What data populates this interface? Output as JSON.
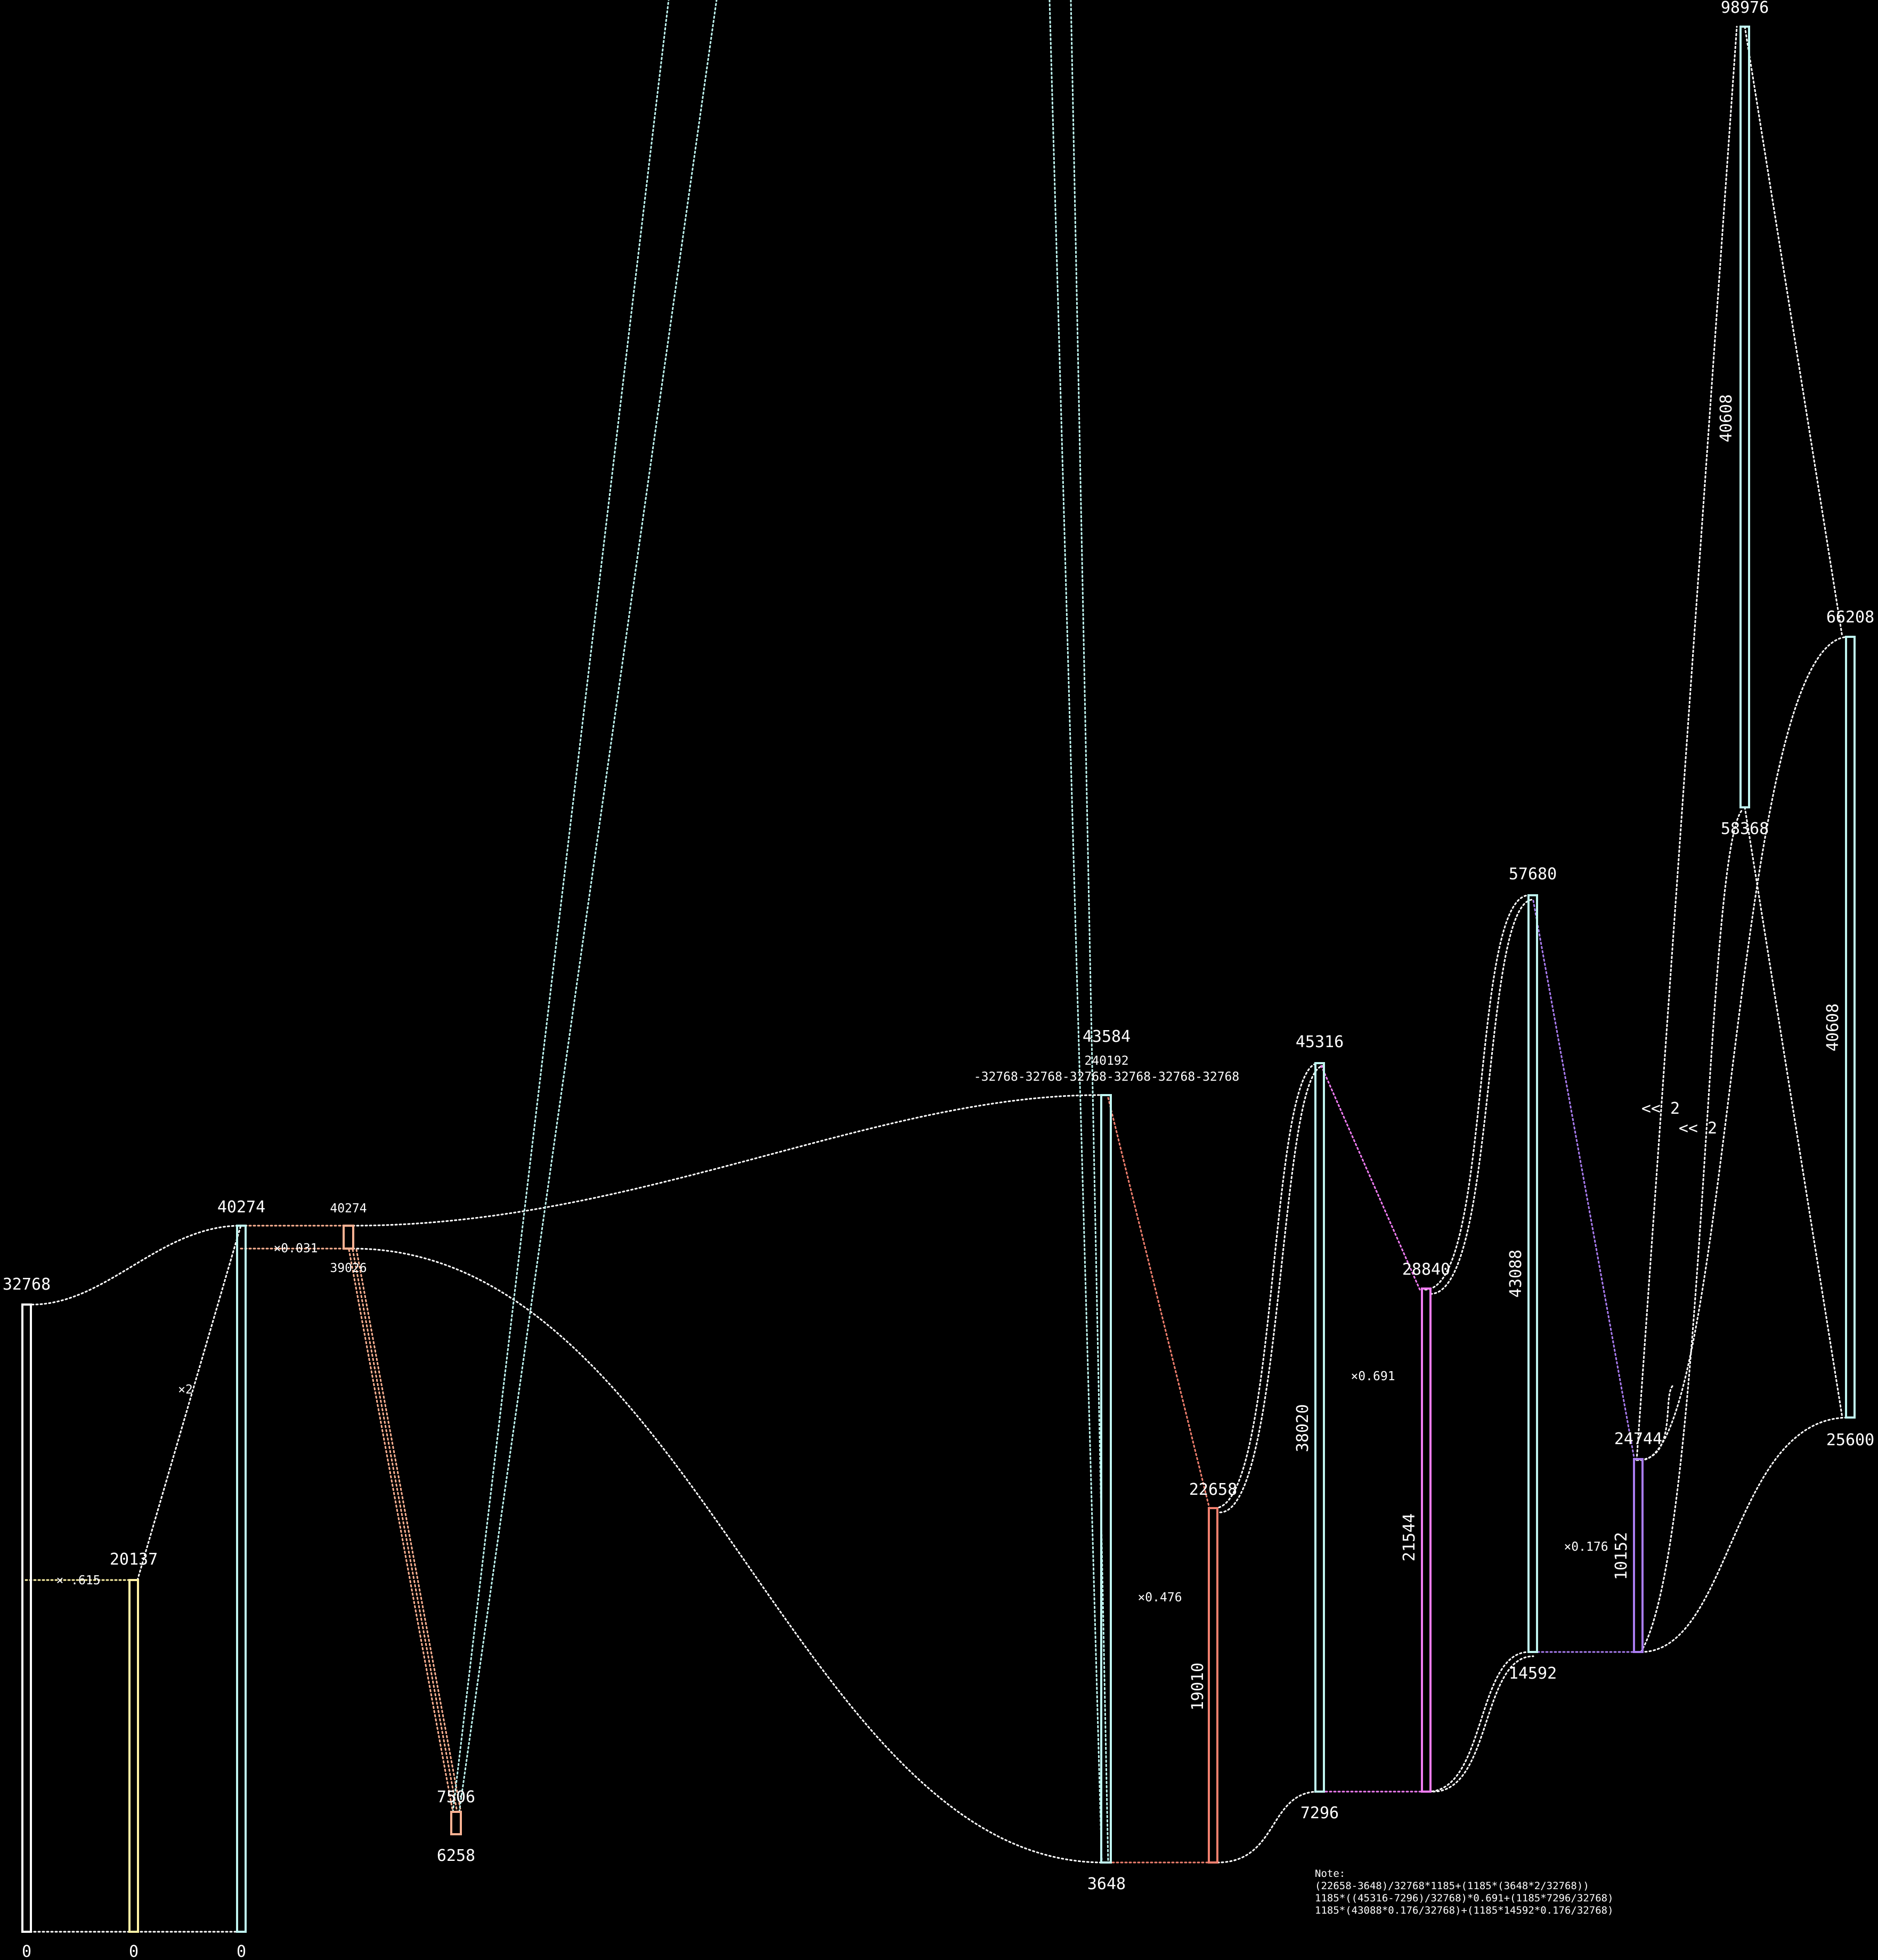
{
  "colors": {
    "background": "#000000",
    "text": "#ffffff",
    "white": "#ffffff",
    "cyan": "#bff5f0",
    "yellow": "#fff3a6",
    "salmon": "#ffb293",
    "red": "#f07f6e",
    "magenta": "#f07cf3",
    "violet": "#a97cf0"
  },
  "values": {
    "v0a": "0",
    "v0b": "0",
    "v0c": "0",
    "v32768": "32768",
    "v20137": "20137",
    "v40274": "40274",
    "v40274_small": "40274",
    "v39026": "39026",
    "v7506": "7506",
    "v6258": "6258",
    "v43584": "43584",
    "v240192": "240192",
    "expr_sub": "-32768-32768-32768-32768-32768-32768",
    "v3648": "3648",
    "v22658": "22658",
    "v19010": "19010",
    "v45316": "45316",
    "v38020": "38020",
    "v7296": "7296",
    "v28840": "28840",
    "v21544": "21544",
    "v57680": "57680",
    "v43088": "43088",
    "v14592": "14592",
    "v24744": "24744",
    "v10152": "10152",
    "v98976": "98976",
    "v40608_a": "40608",
    "v58368": "58368",
    "v66208": "66208",
    "v40608_b": "40608",
    "v25600": "25600"
  },
  "ops": {
    "mul_0615": "× .615",
    "mul_2": "×2",
    "mul_0031": "×0.031",
    "mul_0476": "×0.476",
    "mul_0691": "×0.691",
    "mul_0176": "×0.176",
    "shl_2a": "<< 2",
    "shl_2b": "<< 2"
  },
  "note": {
    "title": "Note:",
    "line1": "(22658-3648)/32768*1185+(1185*(3648*2/32768))",
    "line2": "1185*((45316-7296)/32768)*0.691+(1185*7296/32768)",
    "line3": "1185*(43088*0.176/32768)+(1185*14592*0.176/32768)"
  }
}
